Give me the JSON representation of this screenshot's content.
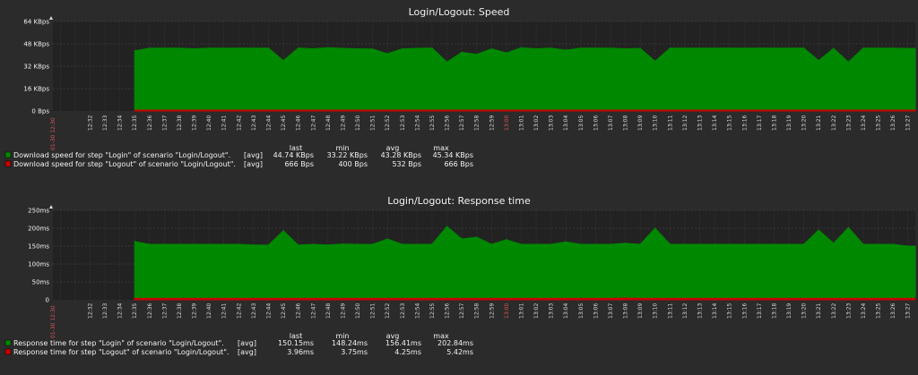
{
  "colors": {
    "background": "#2b2b2b",
    "plot_background": "#222222",
    "grid": "#4a4a4a",
    "series_green": "#008800",
    "series_red": "#cc0000",
    "axis_text": "#f2f2f2",
    "date_label": "#e05555"
  },
  "chart_data": [
    {
      "type": "area",
      "title": "Login/Logout: Speed",
      "ylim": [
        0,
        64
      ],
      "y_ticks": [
        "0 Bps",
        "16 KBps",
        "32 KBps",
        "48 KBps",
        "64 KBps"
      ],
      "x": [
        "12:32",
        "12:33",
        "12:34",
        "12:35",
        "12:36",
        "12:37",
        "12:38",
        "12:39",
        "12:40",
        "12:41",
        "12:42",
        "12:43",
        "12:44",
        "12:45",
        "12:46",
        "12:47",
        "12:48",
        "12:49",
        "12:50",
        "12:51",
        "12:52",
        "12:53",
        "12:54",
        "12:55",
        "12:56",
        "12:57",
        "12:58",
        "12:59",
        "13:00",
        "13:01",
        "13:02",
        "13:03",
        "13:04",
        "13:05",
        "13:06",
        "13:07",
        "13:08",
        "13:09",
        "13:10",
        "13:11",
        "13:12",
        "13:13",
        "13:14",
        "13:15",
        "13:16",
        "13:17",
        "13:18",
        "13:19",
        "13:20",
        "13:21",
        "13:22",
        "13:23",
        "13:24",
        "13:25",
        "13:26",
        "13:27"
      ],
      "date_labels": [
        "01-30 12:30",
        "13:00"
      ],
      "series": [
        {
          "name": "Download speed for step \"Login\" of scenario \"Login/Logout\".",
          "color": "#008800",
          "values": [
            null,
            null,
            null,
            43,
            45,
            45,
            45,
            44.5,
            45,
            45,
            45,
            45,
            45,
            36,
            45,
            44.5,
            45.3,
            44.8,
            44.5,
            44.3,
            41,
            44.5,
            44.8,
            45,
            35,
            42,
            40.5,
            44.5,
            41.5,
            45.3,
            44.5,
            45,
            43.5,
            45,
            45,
            45,
            44.5,
            44.8,
            35.5,
            45,
            45,
            45,
            45,
            45,
            45,
            45,
            45,
            45,
            45,
            36,
            44.8,
            35,
            45,
            45,
            45,
            44.74
          ],
          "stats": {
            "func": "[avg]",
            "last": "44.74 KBps",
            "min": "33.22 KBps",
            "avg": "43.28 KBps",
            "max": "45.34 KBps"
          }
        },
        {
          "name": "Download speed for step \"Logout\" of scenario \"Login/Logout\".",
          "color": "#cc0000",
          "values": [
            null,
            null,
            null,
            0.6,
            0.6,
            0.6,
            0.6,
            0.6,
            0.6,
            0.6,
            0.6,
            0.6,
            0.6,
            0.6,
            0.6,
            0.6,
            0.6,
            0.6,
            0.6,
            0.6,
            0.6,
            0.6,
            0.6,
            0.6,
            0.6,
            0.6,
            0.6,
            0.6,
            0.6,
            0.6,
            0.6,
            0.6,
            0.6,
            0.6,
            0.6,
            0.6,
            0.6,
            0.6,
            0.6,
            0.6,
            0.6,
            0.6,
            0.6,
            0.6,
            0.6,
            0.6,
            0.6,
            0.6,
            0.6,
            0.6,
            0.6,
            0.6,
            0.6,
            0.6,
            0.6,
            0.666
          ],
          "stats": {
            "func": "[avg]",
            "last": "666 Bps",
            "min": "400 Bps",
            "avg": "532 Bps",
            "max": "666 Bps"
          }
        }
      ],
      "legend_headers": {
        "last": "last",
        "min": "min",
        "avg": "avg",
        "max": "max"
      }
    },
    {
      "type": "area",
      "title": "Login/Logout: Response time",
      "ylim": [
        0,
        250
      ],
      "y_ticks": [
        "0",
        "50ms",
        "100ms",
        "150ms",
        "200ms",
        "250ms"
      ],
      "x": [
        "12:32",
        "12:33",
        "12:34",
        "12:35",
        "12:36",
        "12:37",
        "12:38",
        "12:39",
        "12:40",
        "12:41",
        "12:42",
        "12:43",
        "12:44",
        "12:45",
        "12:46",
        "12:47",
        "12:48",
        "12:49",
        "12:50",
        "12:51",
        "12:52",
        "12:53",
        "12:54",
        "12:55",
        "12:56",
        "12:57",
        "12:58",
        "12:59",
        "13:00",
        "13:01",
        "13:02",
        "13:03",
        "13:04",
        "13:05",
        "13:06",
        "13:07",
        "13:08",
        "13:09",
        "13:10",
        "13:11",
        "13:12",
        "13:13",
        "13:14",
        "13:15",
        "13:16",
        "13:17",
        "13:18",
        "13:19",
        "13:20",
        "13:21",
        "13:22",
        "13:23",
        "13:24",
        "13:25",
        "13:26",
        "13:27"
      ],
      "date_labels": [
        "01-30 12:30",
        "13:00"
      ],
      "series": [
        {
          "name": "Response time for step \"Login\" of scenario \"Login/Logout\".",
          "color": "#008800",
          "values": [
            null,
            null,
            null,
            163,
            155,
            155,
            155,
            155,
            155,
            155,
            155,
            153,
            153,
            193,
            153,
            155,
            153,
            156,
            155,
            155,
            170,
            155,
            155,
            155,
            205,
            170,
            175,
            155,
            168,
            155,
            155,
            155,
            162,
            155,
            155,
            155,
            158,
            155,
            200,
            155,
            155,
            155,
            155,
            155,
            155,
            155,
            155,
            155,
            155,
            195,
            158,
            202,
            155,
            155,
            155,
            150.15
          ],
          "stats": {
            "func": "[avg]",
            "last": "150.15ms",
            "min": "148.24ms",
            "avg": "156.41ms",
            "max": "202.84ms"
          }
        },
        {
          "name": "Response time for step \"Logout\" of scenario \"Login/Logout\".",
          "color": "#cc0000",
          "values": [
            null,
            null,
            null,
            4,
            4,
            4,
            4,
            4,
            4,
            4,
            4,
            4,
            4,
            4,
            4,
            4,
            4,
            4,
            4,
            4,
            4,
            4,
            4,
            4,
            4,
            4,
            4,
            4,
            4,
            4,
            4,
            4,
            4,
            4,
            4,
            4,
            5,
            4,
            4,
            4,
            4,
            4,
            4,
            4,
            4,
            4,
            4,
            4,
            4,
            4,
            4,
            4,
            4,
            4,
            4,
            3.96
          ],
          "stats": {
            "func": "[avg]",
            "last": "3.96ms",
            "min": "3.75ms",
            "avg": "4.25ms",
            "max": "5.42ms"
          }
        }
      ],
      "legend_headers": {
        "last": "last",
        "min": "min",
        "avg": "avg",
        "max": "max"
      }
    }
  ]
}
